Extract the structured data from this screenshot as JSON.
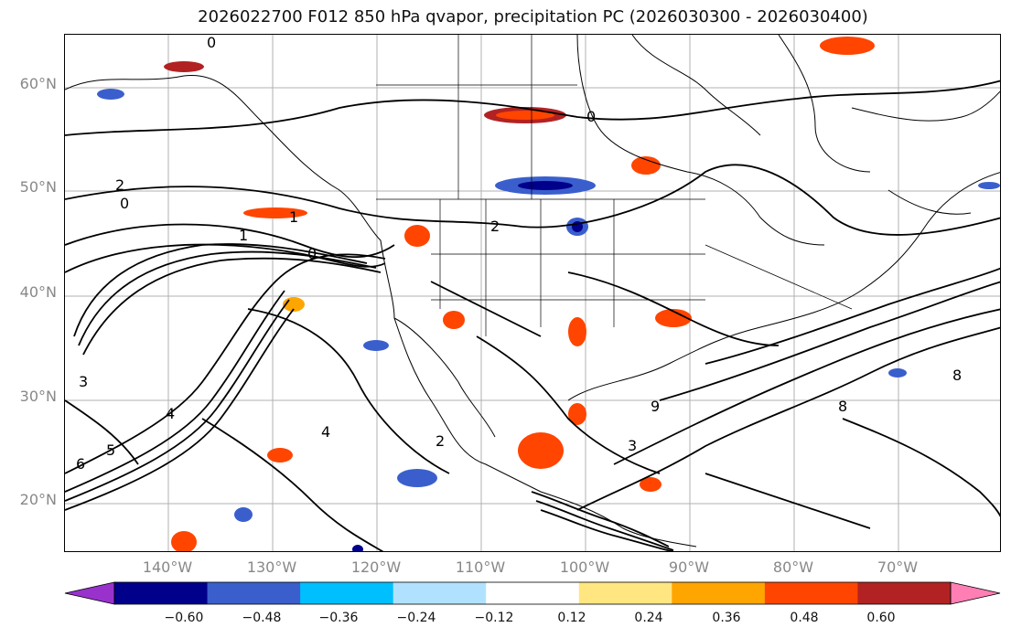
{
  "title": "2026022700 F012 850 hPa qvapor, precipitation PC (2026030300 - 2026030400)",
  "map": {
    "lat_labels": [
      "60°N",
      "50°N",
      "40°N",
      "30°N",
      "20°N"
    ],
    "lon_labels": [
      "140°W",
      "130°W",
      "120°W",
      "110°W",
      "100°W",
      "90°W",
      "80°W",
      "70°W"
    ],
    "contour_labels": [
      "0",
      "0",
      "0",
      "1",
      "2",
      "0",
      "1",
      "2",
      "3",
      "4",
      "5",
      "6",
      "9",
      "8",
      "8",
      "3",
      "4",
      "2"
    ],
    "colors": {
      "gridline": "#b0b0b0",
      "contour": "#000000",
      "coast": "#000000"
    }
  },
  "colorbar": {
    "ticks": [
      "−0.60",
      "−0.48",
      "−0.36",
      "−0.24",
      "−0.12",
      "0.12",
      "0.24",
      "0.36",
      "0.48",
      "0.60"
    ],
    "colors": [
      "#9932cc",
      "#00008b",
      "#3a5fcd",
      "#00bfff",
      "#b0e2ff",
      "#ffffff",
      "#ffe680",
      "#ffa500",
      "#ff4500",
      "#b22222",
      "#ff7fb4"
    ]
  }
}
